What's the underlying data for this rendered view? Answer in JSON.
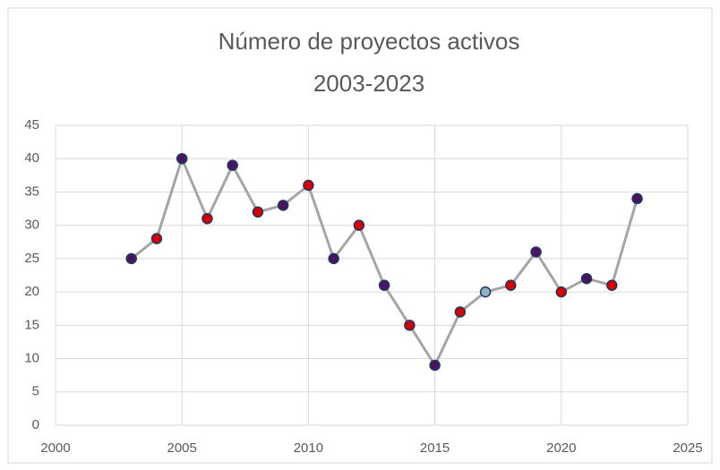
{
  "chart_data": {
    "type": "line",
    "title": "Número de proyectos activos",
    "subtitle": "2003-2023",
    "x": [
      2003,
      2004,
      2005,
      2006,
      2007,
      2008,
      2009,
      2010,
      2011,
      2012,
      2013,
      2014,
      2015,
      2016,
      2017,
      2018,
      2019,
      2020,
      2021,
      2022,
      2023
    ],
    "series": [
      {
        "color": "#a5a5a5",
        "values": [
          25,
          28,
          40,
          31,
          39,
          32,
          33,
          36,
          25,
          30,
          21,
          15,
          9,
          17,
          20,
          21,
          26,
          20,
          22,
          21,
          34
        ],
        "marker_colors": [
          "#4a1560",
          "#d50000",
          "#4a1560",
          "#d50000",
          "#4a1560",
          "#d50000",
          "#4a1560",
          "#d50000",
          "#4a1560",
          "#d50000",
          "#4a1560",
          "#d50000",
          "#4a1560",
          "#d50000",
          "#8fb3c4",
          "#d50000",
          "#4a1560",
          "#d50000",
          "#4a1560",
          "#d50000",
          "#4a1560"
        ],
        "marker_edge_color": "#1f3864"
      }
    ],
    "xlim": [
      2000,
      2025
    ],
    "xticks": [
      2000,
      2005,
      2010,
      2015,
      2020,
      2025
    ],
    "ylim": [
      0,
      45
    ],
    "yticks": [
      0,
      5,
      10,
      15,
      20,
      25,
      30,
      35,
      40,
      45
    ],
    "grid": true
  }
}
